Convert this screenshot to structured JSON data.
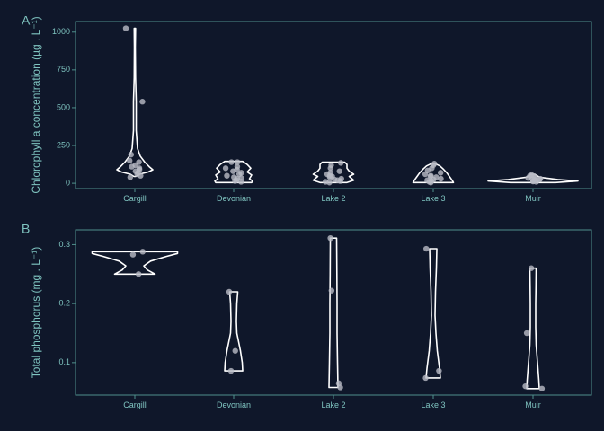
{
  "chart_data": [
    {
      "type": "violin",
      "panel_label": "A",
      "ylabel": "Chlorophyll a concentration (µg . L⁻¹)",
      "categories": [
        "Cargill",
        "Devonian",
        "Lake 2",
        "Lake 3",
        "Muir"
      ],
      "ylim": [
        -35,
        1070
      ],
      "yticks": [
        0,
        250,
        500,
        750,
        1000
      ],
      "points": {
        "Cargill": [
          1025,
          540,
          190,
          150,
          140,
          120,
          110,
          100,
          90,
          80,
          70,
          60,
          50,
          40
        ],
        "Devonian": [
          140,
          140,
          110,
          100,
          90,
          80,
          70,
          60,
          50,
          40,
          35,
          30,
          20,
          15,
          10
        ],
        "Lake 2": [
          135,
          120,
          100,
          80,
          70,
          60,
          50,
          45,
          40,
          30,
          25,
          20,
          15,
          10,
          5
        ],
        "Lake 3": [
          130,
          120,
          100,
          85,
          70,
          60,
          50,
          45,
          40,
          30,
          25,
          20,
          15,
          10,
          5
        ],
        "Muir": [
          55,
          50,
          45,
          40,
          35,
          30,
          28,
          25,
          22,
          20,
          15,
          12,
          10
        ]
      },
      "violins": {
        "Cargill": {
          "range": [
            45,
            1025
          ],
          "profile": [
            [
              45,
              0.02
            ],
            [
              60,
              0.1
            ],
            [
              75,
              0.3
            ],
            [
              90,
              0.4
            ],
            [
              110,
              0.32
            ],
            [
              140,
              0.22
            ],
            [
              180,
              0.12
            ],
            [
              230,
              0.06
            ],
            [
              350,
              0.03
            ],
            [
              540,
              0.03
            ],
            [
              700,
              0.015
            ],
            [
              900,
              0.01
            ],
            [
              1025,
              0.015
            ]
          ]
        },
        "Devonian": {
          "range": [
            5,
            145
          ],
          "profile": [
            [
              5,
              0.4
            ],
            [
              15,
              0.42
            ],
            [
              30,
              0.35
            ],
            [
              55,
              0.4
            ],
            [
              75,
              0.3
            ],
            [
              100,
              0.38
            ],
            [
              125,
              0.3
            ],
            [
              145,
              0.2
            ]
          ]
        },
        "Lake 2": {
          "range": [
            5,
            140
          ],
          "profile": [
            [
              5,
              0.3
            ],
            [
              20,
              0.45
            ],
            [
              45,
              0.35
            ],
            [
              60,
              0.45
            ],
            [
              80,
              0.35
            ],
            [
              100,
              0.3
            ],
            [
              125,
              0.3
            ],
            [
              140,
              0.25
            ]
          ]
        },
        "Lake 3": {
          "range": [
            5,
            130
          ],
          "profile": [
            [
              5,
              0.45
            ],
            [
              20,
              0.42
            ],
            [
              45,
              0.36
            ],
            [
              70,
              0.3
            ],
            [
              95,
              0.22
            ],
            [
              115,
              0.15
            ],
            [
              130,
              0.04
            ]
          ]
        },
        "Muir": {
          "range": [
            5,
            60
          ],
          "profile": [
            [
              5,
              0.5
            ],
            [
              15,
              1.0
            ],
            [
              25,
              0.55
            ],
            [
              40,
              0.15
            ],
            [
              60,
              0.04
            ]
          ]
        }
      },
      "xticks_shown": true
    },
    {
      "type": "violin",
      "panel_label": "B",
      "ylabel": "Total phosphorus (mg . L⁻¹)",
      "categories": [
        "Cargill",
        "Devonian",
        "Lake 2",
        "Lake 3",
        "Muir"
      ],
      "ylim": [
        0.045,
        0.325
      ],
      "yticks": [
        0.1,
        0.2,
        0.3
      ],
      "points": {
        "Cargill": [
          0.288,
          0.283,
          0.25
        ],
        "Devonian": [
          0.22,
          0.12,
          0.086
        ],
        "Lake 2": [
          0.311,
          0.222,
          0.065,
          0.058
        ],
        "Lake 3": [
          0.293,
          0.086,
          0.074
        ],
        "Muir": [
          0.26,
          0.15,
          0.06,
          0.056
        ]
      },
      "violins": {
        "Cargill": {
          "range": [
            0.25,
            0.288
          ],
          "profile": [
            [
              0.25,
              0.45
            ],
            [
              0.257,
              0.28
            ],
            [
              0.264,
              0.2
            ],
            [
              0.272,
              0.35
            ],
            [
              0.28,
              0.7
            ],
            [
              0.285,
              0.95
            ],
            [
              0.288,
              0.95
            ]
          ]
        },
        "Devonian": {
          "range": [
            0.086,
            0.22
          ],
          "profile": [
            [
              0.086,
              0.2
            ],
            [
              0.1,
              0.19
            ],
            [
              0.12,
              0.15
            ],
            [
              0.15,
              0.07
            ],
            [
              0.17,
              0.06
            ],
            [
              0.2,
              0.07
            ],
            [
              0.22,
              0.09
            ]
          ]
        },
        "Lake 2": {
          "range": [
            0.058,
            0.311
          ],
          "profile": [
            [
              0.058,
              0.1
            ],
            [
              0.1,
              0.09
            ],
            [
              0.15,
              0.08
            ],
            [
              0.2,
              0.08
            ],
            [
              0.25,
              0.075
            ],
            [
              0.311,
              0.07
            ]
          ]
        },
        "Lake 3": {
          "range": [
            0.074,
            0.293
          ],
          "profile": [
            [
              0.074,
              0.16
            ],
            [
              0.09,
              0.14
            ],
            [
              0.12,
              0.09
            ],
            [
              0.15,
              0.06
            ],
            [
              0.18,
              0.04
            ],
            [
              0.22,
              0.05
            ],
            [
              0.26,
              0.07
            ],
            [
              0.293,
              0.08
            ]
          ]
        },
        "Muir": {
          "range": [
            0.056,
            0.26
          ],
          "profile": [
            [
              0.056,
              0.14
            ],
            [
              0.07,
              0.13
            ],
            [
              0.1,
              0.1
            ],
            [
              0.13,
              0.07
            ],
            [
              0.16,
              0.06
            ],
            [
              0.2,
              0.06
            ],
            [
              0.23,
              0.065
            ],
            [
              0.26,
              0.07
            ]
          ]
        }
      },
      "xticks_shown": true
    }
  ]
}
